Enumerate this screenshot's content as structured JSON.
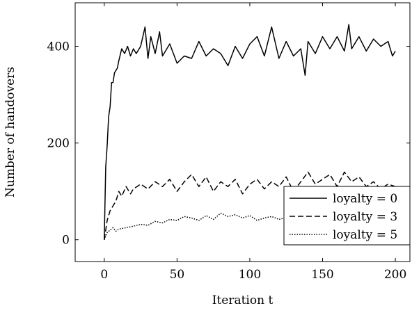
{
  "chart_data": {
    "type": "line",
    "title": "",
    "xlabel": "Iteration t",
    "ylabel": "Number of handovers",
    "xlim": [
      -20,
      210
    ],
    "ylim": [
      -45,
      490
    ],
    "xticks": [
      0,
      50,
      100,
      150,
      200
    ],
    "yticks": [
      0,
      200,
      400
    ],
    "grid": false,
    "legend_position": "lower-right",
    "series": [
      {
        "name": "loyalty = 0",
        "style": "solid",
        "x": [
          0,
          1,
          2,
          3,
          4,
          5,
          6,
          7,
          8,
          9,
          10,
          12,
          14,
          16,
          18,
          20,
          22,
          25,
          28,
          30,
          32,
          35,
          38,
          40,
          45,
          50,
          55,
          60,
          65,
          70,
          75,
          80,
          85,
          90,
          95,
          100,
          105,
          110,
          115,
          120,
          125,
          130,
          135,
          138,
          140,
          145,
          150,
          155,
          160,
          165,
          168,
          170,
          175,
          180,
          185,
          190,
          195,
          198,
          200
        ],
        "values": [
          0,
          150,
          195,
          255,
          275,
          325,
          325,
          345,
          350,
          355,
          370,
          395,
          385,
          400,
          380,
          395,
          385,
          400,
          440,
          375,
          420,
          385,
          430,
          380,
          405,
          365,
          380,
          375,
          410,
          380,
          395,
          385,
          360,
          400,
          375,
          405,
          420,
          380,
          440,
          375,
          410,
          380,
          395,
          340,
          410,
          385,
          420,
          395,
          420,
          390,
          445,
          395,
          420,
          390,
          415,
          400,
          410,
          380,
          390
        ]
      },
      {
        "name": "loyalty = 3",
        "style": "dashed",
        "x": [
          0,
          2,
          4,
          6,
          8,
          10,
          12,
          15,
          18,
          20,
          25,
          30,
          35,
          40,
          45,
          50,
          55,
          60,
          65,
          70,
          75,
          80,
          85,
          90,
          95,
          100,
          105,
          110,
          115,
          120,
          125,
          130,
          135,
          140,
          145,
          150,
          155,
          160,
          165,
          170,
          175,
          180,
          185,
          190,
          195,
          200
        ],
        "values": [
          0,
          40,
          60,
          70,
          80,
          100,
          90,
          110,
          95,
          105,
          115,
          105,
          120,
          110,
          125,
          100,
          120,
          135,
          110,
          130,
          100,
          120,
          110,
          125,
          95,
          115,
          125,
          105,
          120,
          110,
          130,
          100,
          120,
          140,
          115,
          125,
          135,
          110,
          140,
          120,
          130,
          110,
          120,
          105,
          115,
          110
        ]
      },
      {
        "name": "loyalty = 5",
        "style": "dotted",
        "x": [
          0,
          2,
          4,
          6,
          8,
          10,
          15,
          20,
          25,
          30,
          35,
          40,
          45,
          50,
          55,
          60,
          65,
          70,
          75,
          80,
          85,
          90,
          95,
          100,
          105,
          110,
          115,
          120,
          125,
          130,
          135,
          140,
          145,
          150
        ],
        "values": [
          0,
          15,
          20,
          25,
          18,
          22,
          25,
          28,
          32,
          30,
          38,
          35,
          42,
          40,
          48,
          45,
          40,
          50,
          42,
          55,
          48,
          52,
          45,
          50,
          40,
          45,
          48,
          42,
          46,
          40,
          44,
          38,
          42,
          40
        ]
      }
    ]
  }
}
